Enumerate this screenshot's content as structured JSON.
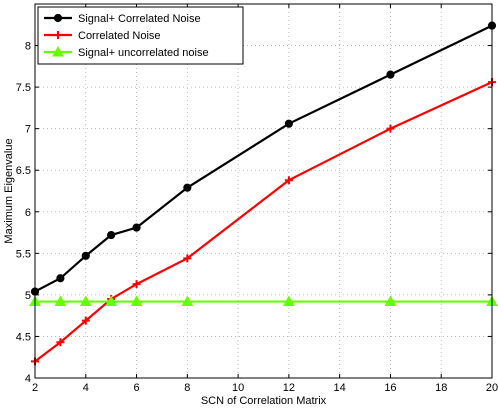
{
  "chart_data": {
    "type": "line",
    "title": "",
    "xlabel": "SCN of Correlation Matrix",
    "ylabel": "Maximum Eigenvalue",
    "xlim": [
      2,
      20
    ],
    "ylim": [
      4,
      8.5
    ],
    "xticks": [
      2,
      4,
      6,
      8,
      10,
      12,
      14,
      16,
      18,
      20
    ],
    "yticks": [
      4,
      4.5,
      5,
      5.5,
      6,
      6.5,
      7,
      7.5,
      8
    ],
    "grid": true,
    "legend_position": "top-left",
    "series": [
      {
        "name": "Signal+ Correlated Noise",
        "color": "#000000",
        "marker": "circle",
        "x": [
          2,
          3,
          4,
          5,
          6,
          8,
          12,
          16,
          20
        ],
        "y": [
          5.04,
          5.2,
          5.47,
          5.72,
          5.81,
          6.29,
          7.06,
          7.65,
          8.24
        ]
      },
      {
        "name": "Correlated Noise",
        "color": "#ff0000",
        "marker": "plus",
        "x": [
          2,
          3,
          4,
          5,
          6,
          8,
          12,
          16,
          20
        ],
        "y": [
          4.2,
          4.43,
          4.69,
          4.95,
          5.13,
          5.44,
          6.38,
          7.0,
          7.56
        ]
      },
      {
        "name": "Signal+ uncorrelated noise",
        "color": "#66ff00",
        "marker": "triangle",
        "x": [
          2,
          3,
          4,
          5,
          6,
          8,
          12,
          16,
          20
        ],
        "y": [
          4.92,
          4.92,
          4.92,
          4.92,
          4.92,
          4.92,
          4.92,
          4.92,
          4.92
        ]
      }
    ]
  }
}
